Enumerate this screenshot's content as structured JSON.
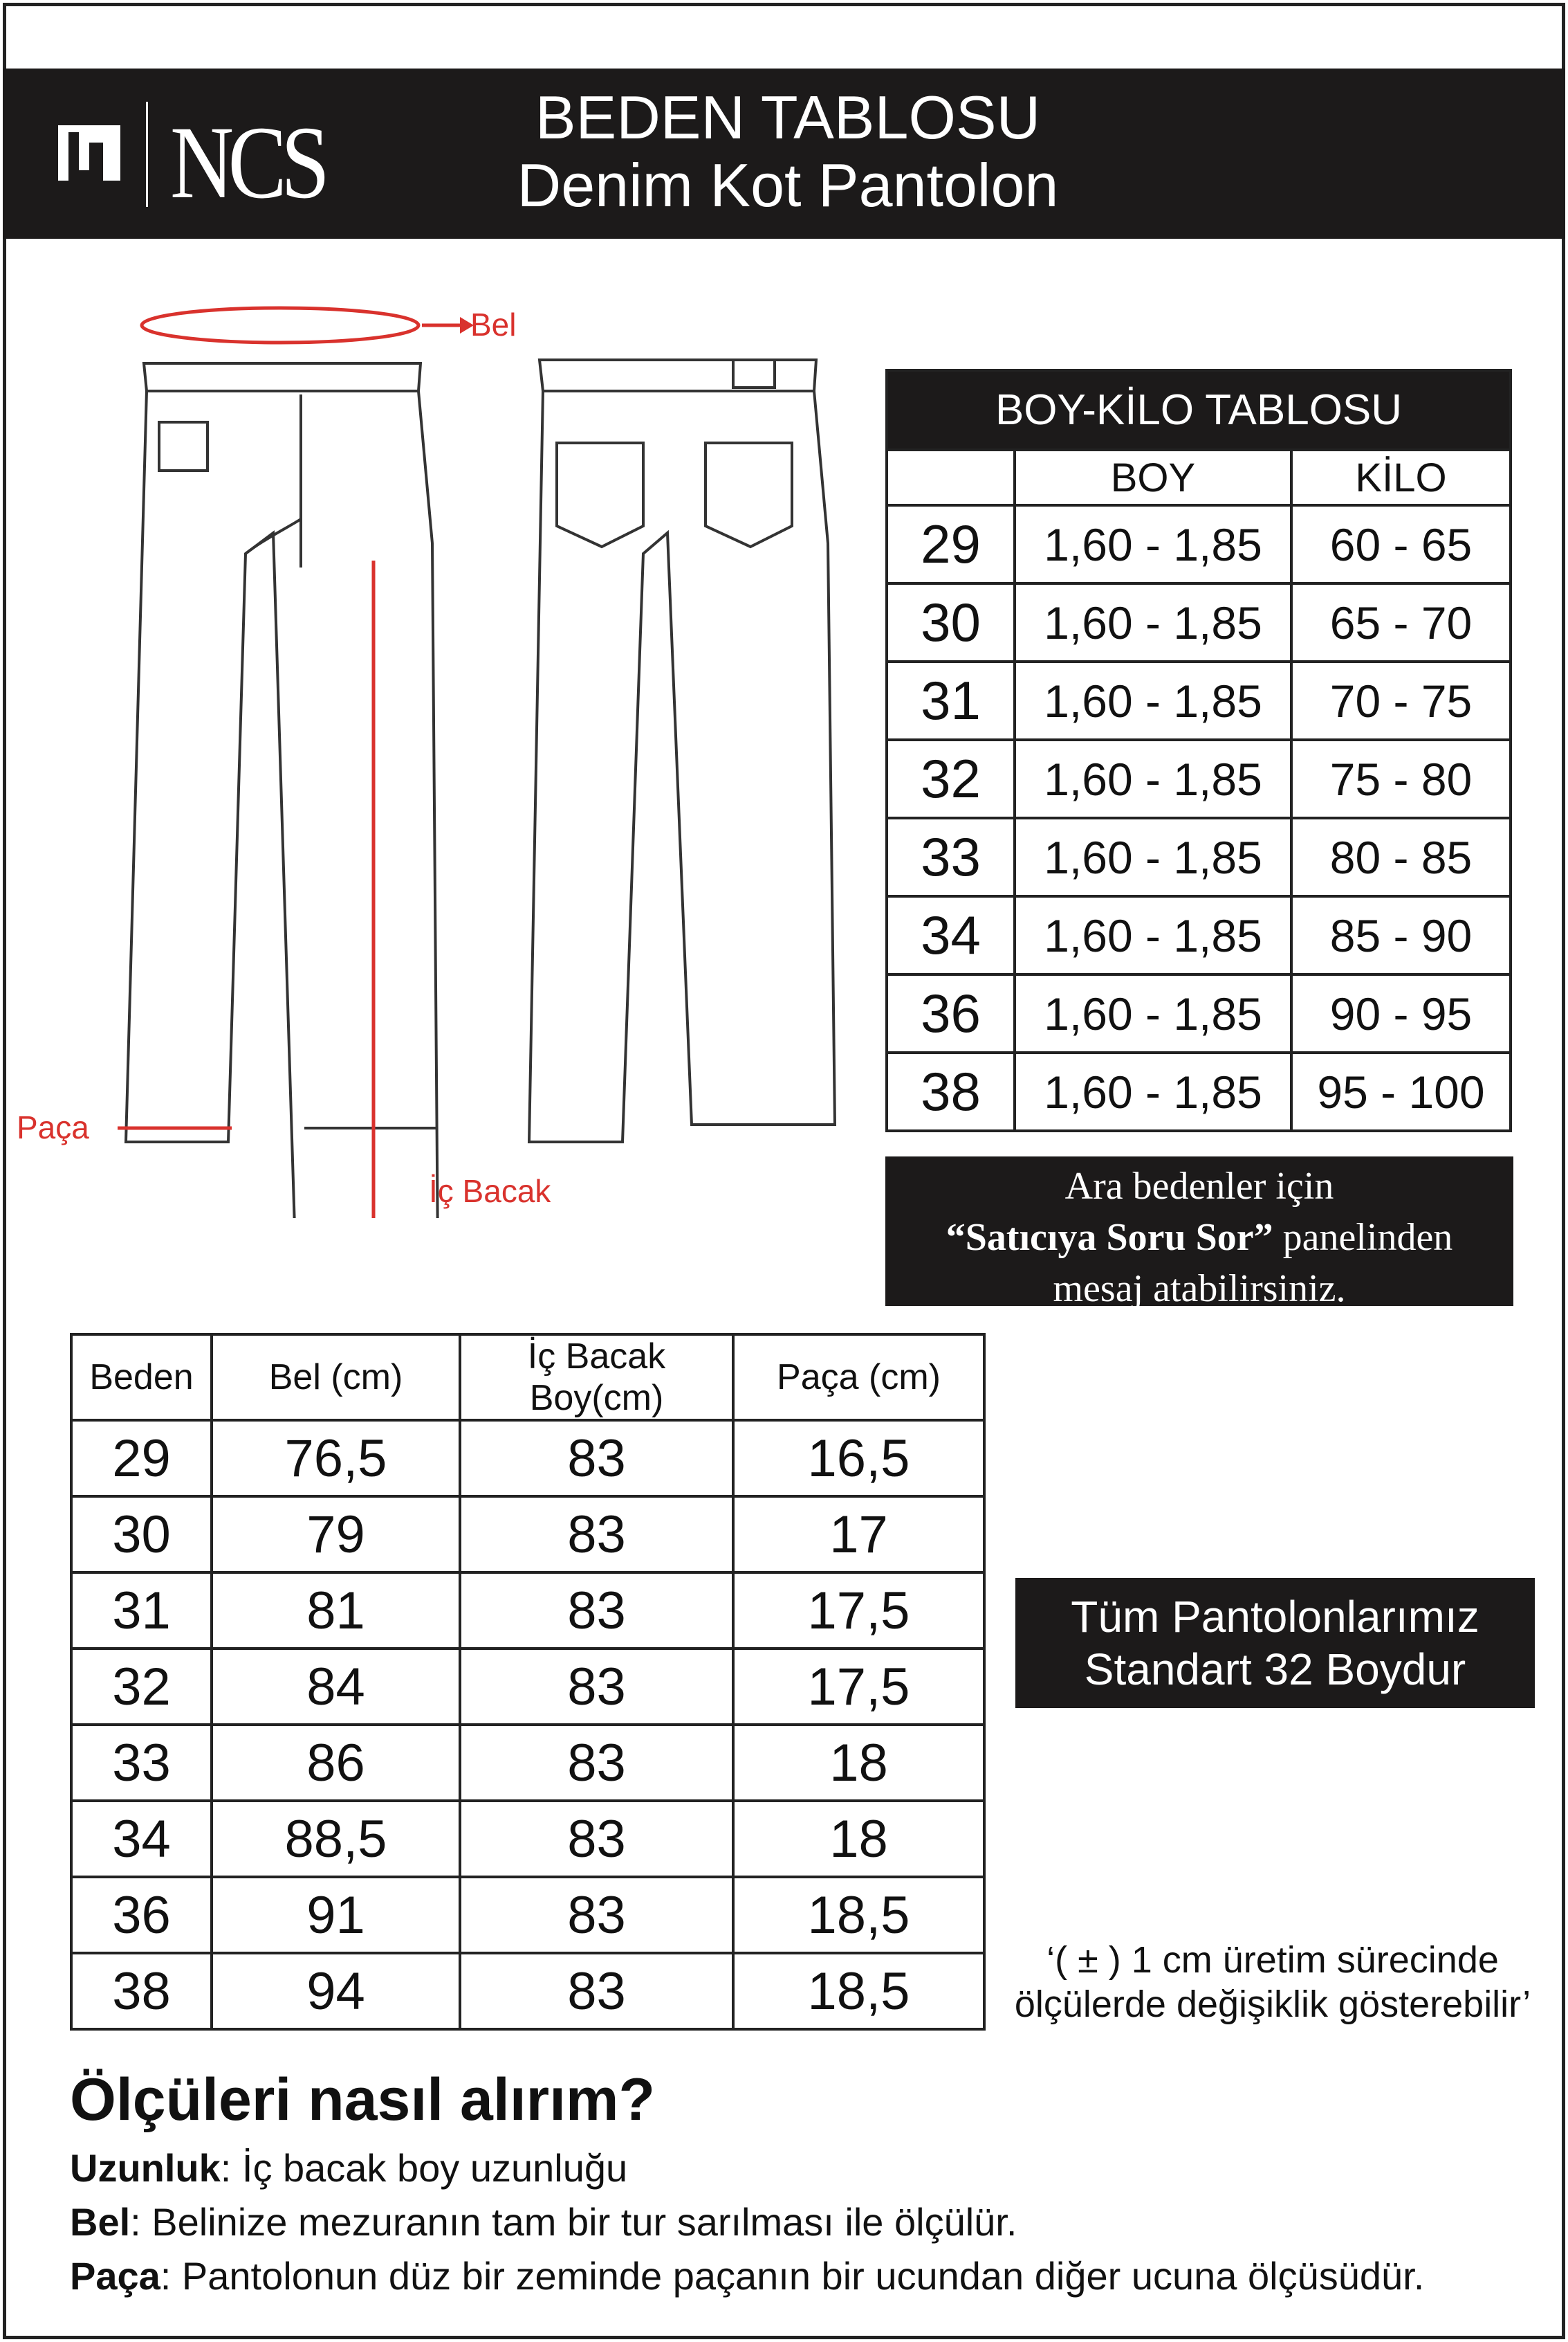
{
  "header": {
    "brand": "NCS",
    "title": "BEDEN TABLOSU",
    "subtitle": "Denim Kot Pantolon"
  },
  "diagram": {
    "bel": "Bel",
    "paca": "Paça",
    "ic_bacak": "İç Bacak"
  },
  "boy_kilo": {
    "title": "BOY-KİLO TABLOSU",
    "headers": [
      "",
      "BOY",
      "KİLO"
    ],
    "rows": [
      [
        "29",
        "1,60 - 1,85",
        "60 - 65"
      ],
      [
        "30",
        "1,60 - 1,85",
        "65 - 70"
      ],
      [
        "31",
        "1,60 - 1,85",
        "70 - 75"
      ],
      [
        "32",
        "1,60 - 1,85",
        "75 - 80"
      ],
      [
        "33",
        "1,60 - 1,85",
        "80 - 85"
      ],
      [
        "34",
        "1,60 - 1,85",
        "85 - 90"
      ],
      [
        "36",
        "1,60 - 1,85",
        "90 - 95"
      ],
      [
        "38",
        "1,60 - 1,85",
        "95 - 100"
      ]
    ]
  },
  "note": {
    "line1": "Ara bedenler için",
    "line2_bold": "“Satıcıya Soru Sor”",
    "line2_rest": " panelinden",
    "line3": "mesaj atabilirsiniz."
  },
  "size_table": {
    "headers": [
      "Beden",
      "Bel (cm)",
      "İç Bacak Boy(cm)",
      "Paça (cm)"
    ],
    "rows": [
      [
        "29",
        "76,5",
        "83",
        "16,5"
      ],
      [
        "30",
        "79",
        "83",
        "17"
      ],
      [
        "31",
        "81",
        "83",
        "17,5"
      ],
      [
        "32",
        "84",
        "83",
        "17,5"
      ],
      [
        "33",
        "86",
        "83",
        "18"
      ],
      [
        "34",
        "88,5",
        "83",
        "18"
      ],
      [
        "36",
        "91",
        "83",
        "18,5"
      ],
      [
        "38",
        "94",
        "83",
        "18,5"
      ]
    ]
  },
  "standard": {
    "line1": "Tüm Pantolonlarımız",
    "line2": "Standart 32 Boydur"
  },
  "tolerance": {
    "line1": "‘( ± ) 1 cm üretim sürecinde",
    "line2": "ölçülerde değişiklik gösterebilir’"
  },
  "howto": {
    "title": "Ölçüleri nasıl alırım?",
    "items": [
      {
        "term": "Uzunluk",
        "text": ": İç bacak boy uzunluğu"
      },
      {
        "term": "Bel",
        "text": ": Belinize mezuranın tam bir tur sarılması ile ölçülür."
      },
      {
        "term": "Paça",
        "text": ": Pantolonun düz bir zeminde paçanın bir ucundan diğer ucuna ölçüsüdür."
      }
    ]
  },
  "colors": {
    "accent": "#d9322d",
    "dark": "#1c1a1a"
  }
}
